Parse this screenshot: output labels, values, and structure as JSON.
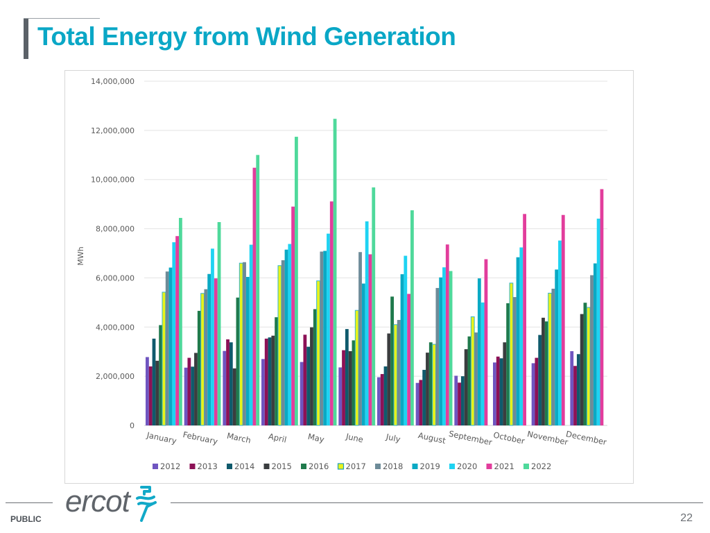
{
  "page": {
    "title": "Total Energy from Wind Generation",
    "footer_label": "PUBLIC",
    "page_number": "22",
    "logo_text": "ercot",
    "logo_icon": "ercot-lightning-icon"
  },
  "colors": {
    "title": "#0aa7c6",
    "series": {
      "2012": "#6f55c0",
      "2013": "#8c1156",
      "2014": "#0f5a6c",
      "2015": "#3a3d3f",
      "2016": "#1f7a4c",
      "2017": "#e8f21a",
      "2018": "#6d8b98",
      "2019": "#0aa9c4",
      "2020": "#1ed3f2",
      "2021": "#e23d9c",
      "2022": "#4fd99b"
    }
  },
  "chart_data": {
    "type": "bar",
    "title": "",
    "xlabel": "",
    "ylabel": "MWh",
    "ylim": [
      0,
      14000000
    ],
    "yticks": [
      0,
      2000000,
      4000000,
      6000000,
      8000000,
      10000000,
      12000000,
      14000000
    ],
    "ytick_labels": [
      "0",
      "2,000,000",
      "4,000,000",
      "6,000,000",
      "8,000,000",
      "10,000,000",
      "12,000,000",
      "14,000,000"
    ],
    "grid": true,
    "legend_position": "bottom",
    "categories": [
      "January",
      "February",
      "March",
      "April",
      "May",
      "June",
      "July",
      "August",
      "September",
      "October",
      "November",
      "December"
    ],
    "series": [
      {
        "name": "2012",
        "values": [
          2780000,
          2350000,
          3030000,
          2700000,
          2580000,
          2360000,
          1960000,
          1730000,
          2020000,
          2560000,
          2530000,
          3020000
        ]
      },
      {
        "name": "2013",
        "values": [
          2400000,
          2750000,
          3500000,
          3530000,
          3690000,
          3060000,
          2090000,
          1850000,
          1740000,
          2800000,
          2750000,
          2420000
        ]
      },
      {
        "name": "2014",
        "values": [
          3530000,
          2390000,
          3380000,
          3580000,
          3200000,
          3920000,
          2400000,
          2260000,
          2000000,
          2730000,
          3680000,
          2900000
        ]
      },
      {
        "name": "2015",
        "values": [
          2630000,
          2950000,
          2320000,
          3650000,
          3990000,
          3020000,
          3740000,
          2960000,
          3100000,
          3380000,
          4380000,
          4530000
        ]
      },
      {
        "name": "2016",
        "values": [
          4080000,
          4660000,
          5200000,
          4400000,
          4730000,
          3460000,
          5240000,
          3380000,
          3620000,
          4970000,
          4230000,
          4990000
        ]
      },
      {
        "name": "2017",
        "values": [
          5420000,
          5370000,
          6600000,
          6500000,
          5880000,
          4680000,
          4100000,
          3300000,
          4420000,
          5790000,
          5380000,
          4800000
        ]
      },
      {
        "name": "2018",
        "values": [
          6260000,
          5540000,
          6640000,
          6720000,
          7070000,
          7050000,
          4290000,
          5590000,
          3780000,
          5220000,
          5560000,
          6110000
        ]
      },
      {
        "name": "2019",
        "values": [
          6420000,
          6160000,
          6040000,
          7150000,
          7100000,
          5770000,
          6150000,
          6020000,
          5980000,
          6840000,
          6340000,
          6590000
        ]
      },
      {
        "name": "2020",
        "values": [
          7450000,
          7190000,
          7350000,
          7380000,
          7800000,
          8300000,
          6900000,
          6430000,
          5000000,
          7240000,
          7520000,
          8410000
        ]
      },
      {
        "name": "2021",
        "values": [
          7700000,
          5980000,
          10480000,
          8900000,
          9110000,
          6960000,
          5350000,
          7360000,
          6760000,
          8600000,
          8560000,
          9610000
        ]
      },
      {
        "name": "2022",
        "values": [
          8440000,
          8270000,
          11000000,
          11740000,
          12470000,
          9680000,
          8750000,
          6280000,
          null,
          null,
          null,
          null
        ]
      }
    ]
  }
}
